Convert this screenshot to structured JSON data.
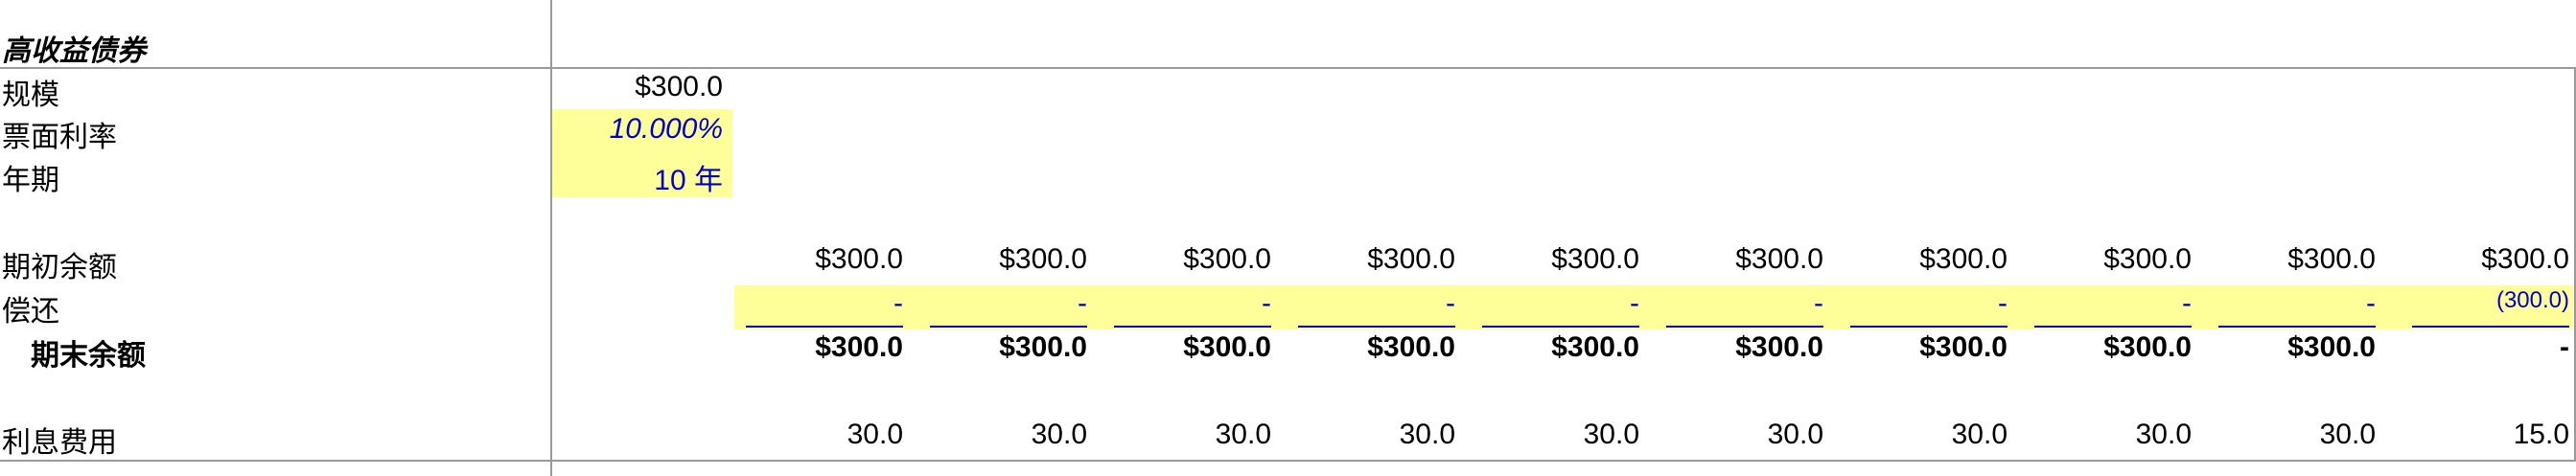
{
  "section_title": "高收益债券",
  "params": {
    "size_label": "规模",
    "size_value": "$300.0",
    "coupon_label": "票面利率",
    "coupon_value": "10.000%",
    "term_label": "年期",
    "term_value": "10 年"
  },
  "schedule": {
    "begin_label": "期初余额",
    "begin_values": [
      "$300.0",
      "$300.0",
      "$300.0",
      "$300.0",
      "$300.0",
      "$300.0",
      "$300.0",
      "$300.0",
      "$300.0",
      "$300.0"
    ],
    "repay_label": "偿还",
    "repay_values": [
      "-",
      "-",
      "-",
      "-",
      "-",
      "-",
      "-",
      "-",
      "-",
      "(300.0)"
    ],
    "end_label": "期末余额",
    "end_values": [
      "$300.0",
      "$300.0",
      "$300.0",
      "$300.0",
      "$300.0",
      "$300.0",
      "$300.0",
      "$300.0",
      "$300.0",
      "-"
    ],
    "interest_label": "利息费用",
    "interest_values": [
      "30.0",
      "30.0",
      "30.0",
      "30.0",
      "30.0",
      "30.0",
      "30.0",
      "30.0",
      "30.0",
      "15.0"
    ]
  },
  "colors": {
    "input_fill": "#ffff99",
    "input_text": "#0000cc",
    "gridline": "#9a9a9a"
  }
}
